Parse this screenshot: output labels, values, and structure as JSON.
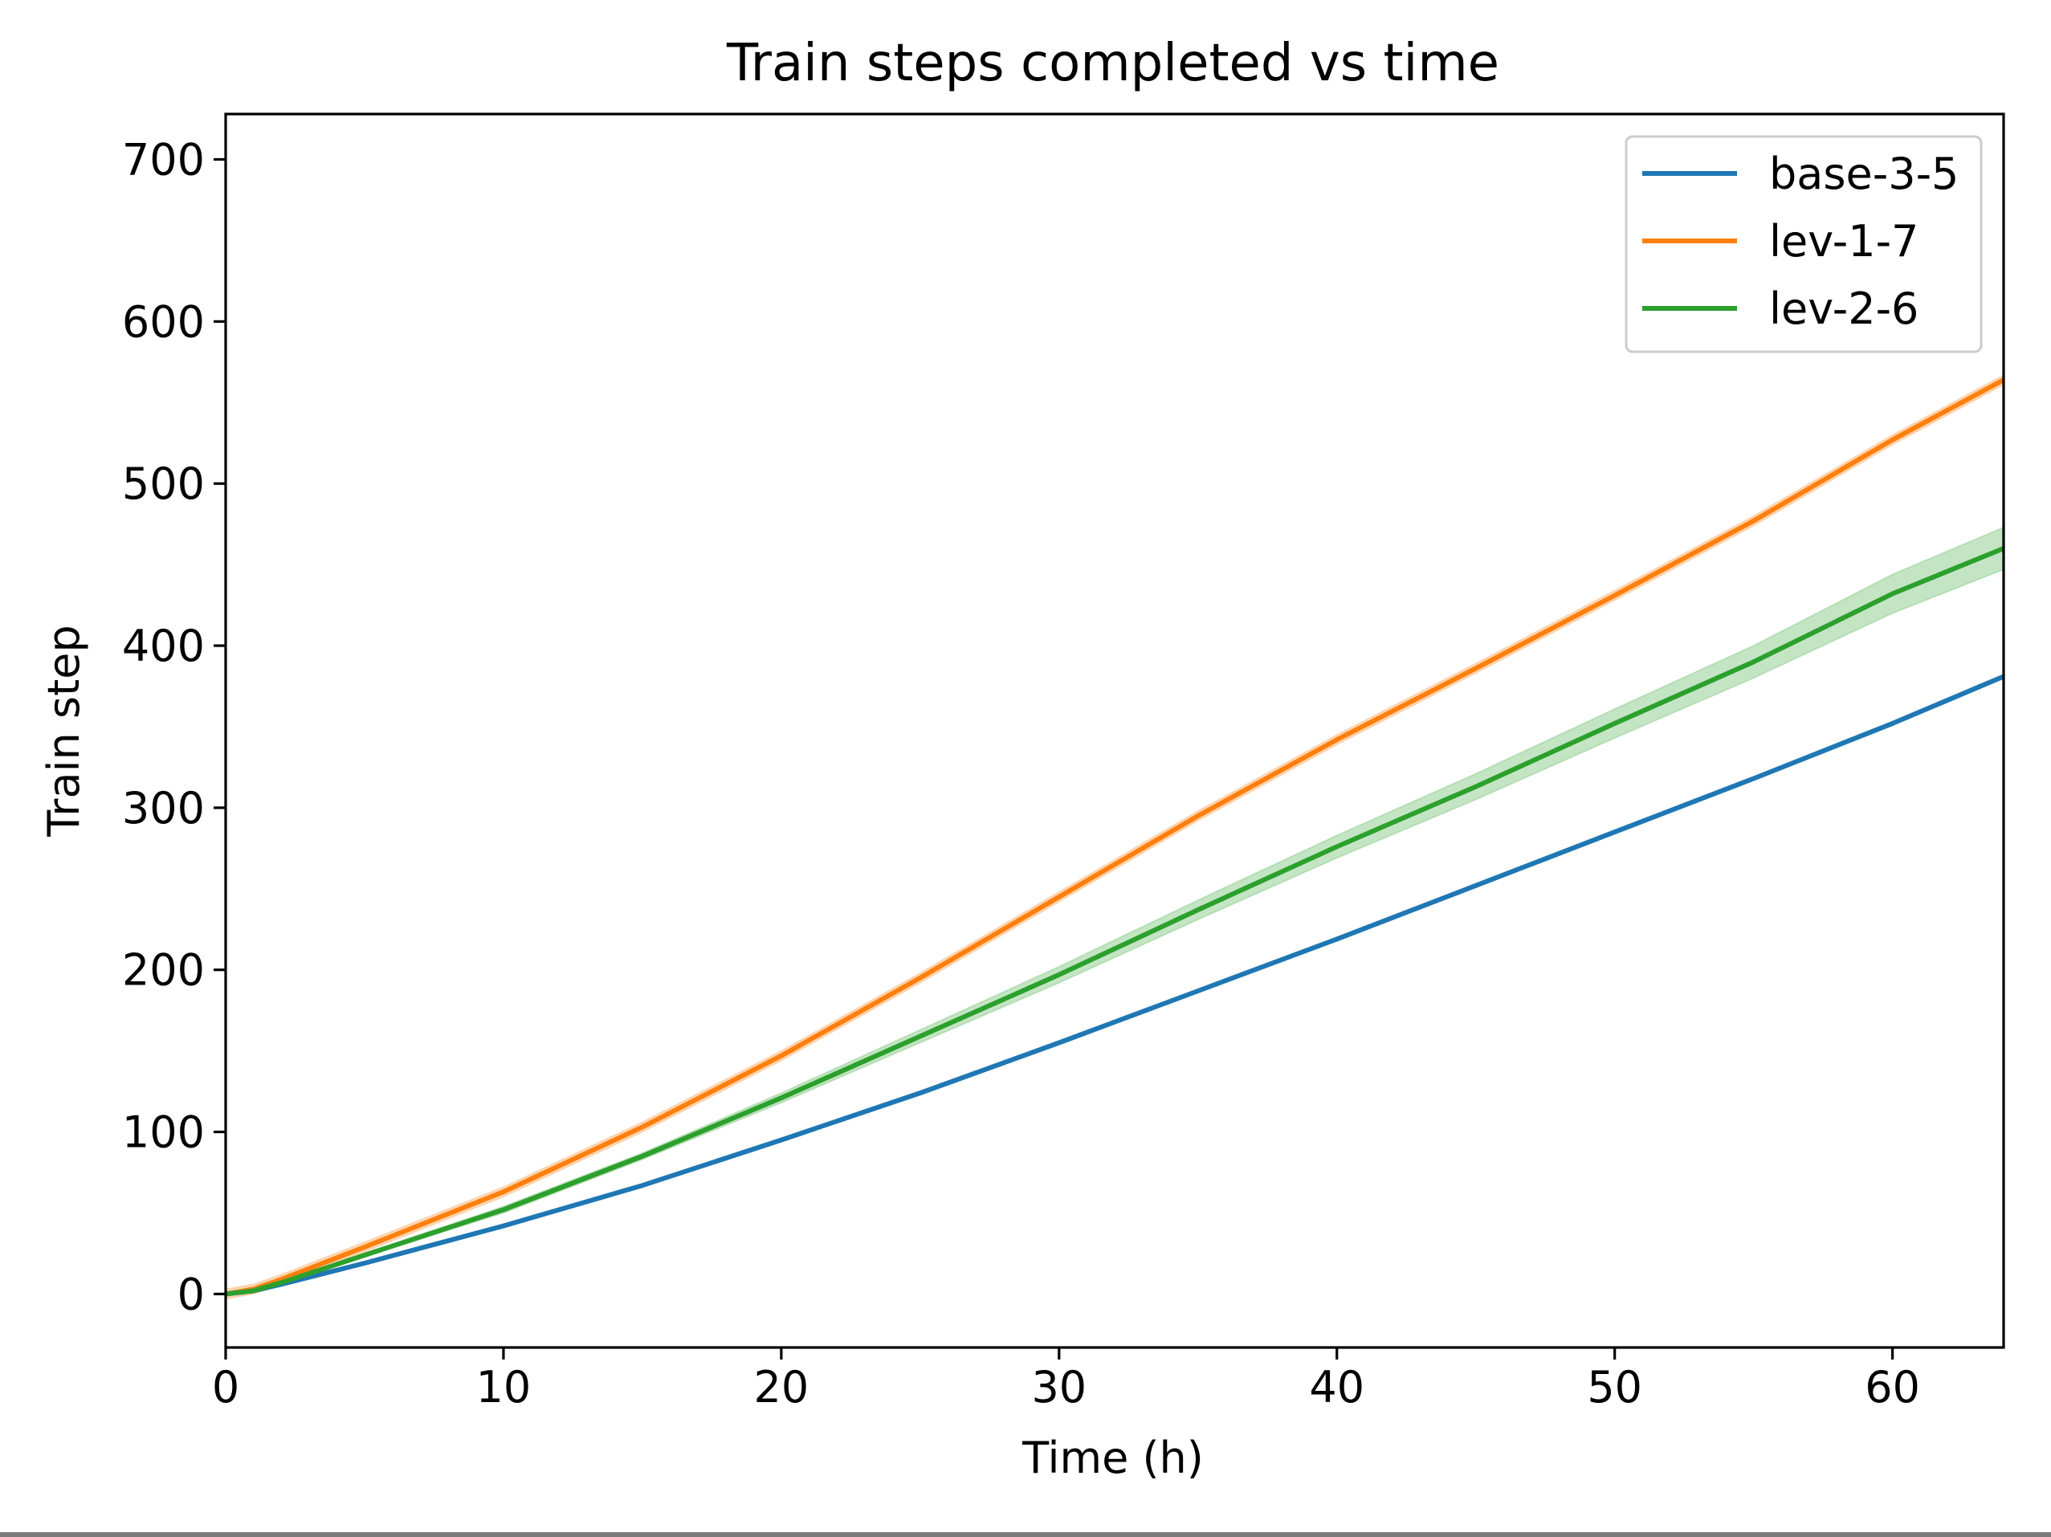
{
  "chart_data": {
    "type": "line",
    "title": "Train steps completed vs time",
    "xlabel": "Time (h)",
    "ylabel": "Train step",
    "xlim": [
      0,
      64
    ],
    "ylim": [
      -33,
      728
    ],
    "xticks": [
      0,
      10,
      20,
      30,
      40,
      50,
      60
    ],
    "yticks": [
      0,
      100,
      200,
      300,
      400,
      500,
      600,
      700
    ],
    "grid": false,
    "legend_position": "top-right",
    "series": [
      {
        "name": "base-3-5",
        "color": "#1f77b4",
        "x": [
          0,
          1,
          2,
          5,
          10,
          15,
          20,
          25,
          30,
          35,
          40,
          45,
          50,
          55,
          60,
          64
        ],
        "y": [
          0,
          2,
          6,
          19,
          42,
          67,
          95,
          124,
          155,
          187,
          219,
          252,
          285,
          318,
          352,
          381
        ]
      },
      {
        "name": "lev-1-7",
        "color": "#ff7f0e",
        "x": [
          0,
          1,
          2,
          5,
          10,
          15,
          20,
          25,
          30,
          35,
          40,
          45,
          50,
          55,
          60,
          64
        ],
        "y": [
          0,
          3,
          9,
          29,
          63,
          103,
          147,
          195,
          245,
          295,
          342,
          386,
          431,
          477,
          527,
          564
        ],
        "band": 3
      },
      {
        "name": "lev-2-6",
        "color": "#2ca02c",
        "x": [
          0,
          1,
          2,
          5,
          10,
          15,
          20,
          25,
          30,
          35,
          40,
          45,
          50,
          55,
          60,
          64
        ],
        "y": [
          0,
          2,
          7,
          24,
          52,
          85,
          121,
          159,
          197,
          237,
          276,
          313,
          352,
          390,
          432,
          460
        ],
        "band": [
          0,
          0.3,
          0.6,
          1,
          2,
          2,
          3,
          4,
          5,
          6,
          7,
          8,
          9,
          10,
          12,
          13
        ]
      }
    ]
  }
}
